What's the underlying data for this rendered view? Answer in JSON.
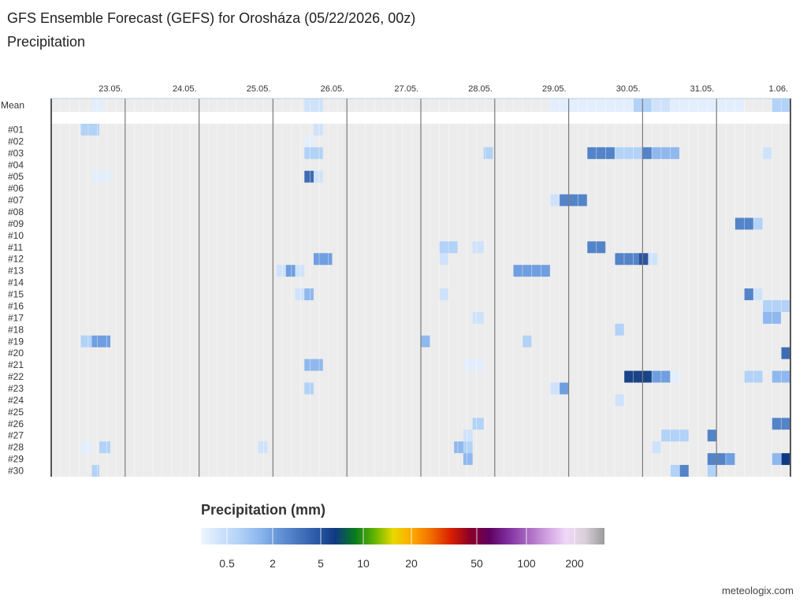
{
  "title": "GFS Ensemble Forecast (GEFS) for Orosháza (05/22/2026, 00z)",
  "subtitle": "Precipitation",
  "credit": "meteologix.com",
  "chart_data": {
    "type": "heatmap",
    "x_unit": "6-hourly steps from 22.05. 00z",
    "date_labels": [
      {
        "label": "23.05.",
        "step": 4
      },
      {
        "label": "24.05.",
        "step": 8
      },
      {
        "label": "25.05.",
        "step": 12
      },
      {
        "label": "26.05.",
        "step": 16
      },
      {
        "label": "27.05.",
        "step": 20
      },
      {
        "label": "28.05.",
        "step": 24
      },
      {
        "label": "29.05.",
        "step": 28
      },
      {
        "label": "30.05.",
        "step": 32
      },
      {
        "label": "31.05.",
        "step": 36
      },
      {
        "label": "1.06.",
        "step": 40
      }
    ],
    "rows": [
      "Mean",
      "#01",
      "#02",
      "#03",
      "#04",
      "#05",
      "#06",
      "#07",
      "#08",
      "#09",
      "#10",
      "#11",
      "#12",
      "#13",
      "#14",
      "#15",
      "#16",
      "#17",
      "#18",
      "#19",
      "#20",
      "#21",
      "#22",
      "#23",
      "#24",
      "#25",
      "#26",
      "#27",
      "#28",
      "#29",
      "#30"
    ],
    "cells": [
      {
        "row": "Mean",
        "from": 2.2,
        "to": 2.8,
        "value": 0.2
      },
      {
        "row": "Mean",
        "from": 13.7,
        "to": 14.7,
        "value": 0.3
      },
      {
        "row": "Mean",
        "from": 27,
        "to": 31.5,
        "value": 0.2
      },
      {
        "row": "Mean",
        "from": 31.5,
        "to": 32.5,
        "value": 0.6
      },
      {
        "row": "Mean",
        "from": 32.5,
        "to": 33.5,
        "value": 0.3
      },
      {
        "row": "Mean",
        "from": 33.5,
        "to": 37.5,
        "value": 0.15
      },
      {
        "row": "Mean",
        "from": 39,
        "to": 40,
        "value": 0.6
      },
      {
        "row": "#01",
        "from": 1.6,
        "to": 2.2,
        "value": 0.5
      },
      {
        "row": "#01",
        "from": 2.2,
        "to": 2.6,
        "value": 0.8
      },
      {
        "row": "#01",
        "from": 14.2,
        "to": 14.7,
        "value": 0.4
      },
      {
        "row": "#02",
        "from": 13.7,
        "to": 14.2,
        "value": 0.2
      },
      {
        "row": "#03",
        "from": 13.7,
        "to": 14.7,
        "value": 0.5
      },
      {
        "row": "#03",
        "from": 23.4,
        "to": 23.9,
        "value": 0.8
      },
      {
        "row": "#03",
        "from": 29,
        "to": 30.5,
        "value": 2.5
      },
      {
        "row": "#03",
        "from": 30.5,
        "to": 32,
        "value": 0.5
      },
      {
        "row": "#03",
        "from": 32,
        "to": 32.5,
        "value": 2.0
      },
      {
        "row": "#03",
        "from": 32.5,
        "to": 34,
        "value": 1.0
      },
      {
        "row": "#03",
        "from": 38.5,
        "to": 39,
        "value": 0.3
      },
      {
        "row": "#05",
        "from": 2.2,
        "to": 3.2,
        "value": 0.2
      },
      {
        "row": "#05",
        "from": 13.7,
        "to": 14.2,
        "value": 3.0
      },
      {
        "row": "#05",
        "from": 14.2,
        "to": 14.7,
        "value": 0.4
      },
      {
        "row": "#07",
        "from": 27,
        "to": 27.5,
        "value": 0.4
      },
      {
        "row": "#07",
        "from": 27.5,
        "to": 29,
        "value": 2.0
      },
      {
        "row": "#09",
        "from": 37,
        "to": 38,
        "value": 2.5
      },
      {
        "row": "#09",
        "from": 38,
        "to": 38.5,
        "value": 0.8
      },
      {
        "row": "#11",
        "from": 21,
        "to": 22,
        "value": 0.5
      },
      {
        "row": "#11",
        "from": 22.8,
        "to": 23.4,
        "value": 0.4
      },
      {
        "row": "#11",
        "from": 29,
        "to": 30,
        "value": 2.5
      },
      {
        "row": "#12",
        "from": 14.2,
        "to": 15.2,
        "value": 1.5
      },
      {
        "row": "#12",
        "from": 21,
        "to": 21.5,
        "value": 0.3
      },
      {
        "row": "#12",
        "from": 30.5,
        "to": 31.8,
        "value": 2.0
      },
      {
        "row": "#12",
        "from": 31.8,
        "to": 32.3,
        "value": 4.5
      },
      {
        "row": "#12",
        "from": 32.3,
        "to": 32.8,
        "value": 0.4
      },
      {
        "row": "#13",
        "from": 12.2,
        "to": 12.7,
        "value": 0.3
      },
      {
        "row": "#13",
        "from": 12.7,
        "to": 13.2,
        "value": 1.5
      },
      {
        "row": "#13",
        "from": 13.2,
        "to": 13.7,
        "value": 0.3
      },
      {
        "row": "#13",
        "from": 25,
        "to": 27,
        "value": 1.8
      },
      {
        "row": "#15",
        "from": 13.2,
        "to": 13.7,
        "value": 0.3
      },
      {
        "row": "#15",
        "from": 13.7,
        "to": 14.2,
        "value": 1.2
      },
      {
        "row": "#15",
        "from": 21,
        "to": 21.5,
        "value": 0.3
      },
      {
        "row": "#15",
        "from": 37.5,
        "to": 38,
        "value": 2.0
      },
      {
        "row": "#15",
        "from": 38,
        "to": 38.5,
        "value": 0.4
      },
      {
        "row": "#16",
        "from": 38.5,
        "to": 40,
        "value": 0.6
      },
      {
        "row": "#17",
        "from": 22.8,
        "to": 23.4,
        "value": 0.4
      },
      {
        "row": "#17",
        "from": 38.5,
        "to": 39.5,
        "value": 1.0
      },
      {
        "row": "#18",
        "from": 30.5,
        "to": 31,
        "value": 0.6
      },
      {
        "row": "#19",
        "from": 1.6,
        "to": 2.2,
        "value": 0.5
      },
      {
        "row": "#19",
        "from": 2.2,
        "to": 3.2,
        "value": 1.5
      },
      {
        "row": "#19",
        "from": 20,
        "to": 20.5,
        "value": 1.2
      },
      {
        "row": "#19",
        "from": 25.5,
        "to": 26,
        "value": 0.7
      },
      {
        "row": "#20",
        "from": 39.5,
        "to": 40,
        "value": 3.0
      },
      {
        "row": "#21",
        "from": 13.7,
        "to": 14.7,
        "value": 1.0
      },
      {
        "row": "#21",
        "from": 22.3,
        "to": 23.4,
        "value": 0.15
      },
      {
        "row": "#22",
        "from": 31,
        "to": 32.5,
        "value": 5.5
      },
      {
        "row": "#22",
        "from": 32.5,
        "to": 33.5,
        "value": 1.5
      },
      {
        "row": "#22",
        "from": 33.5,
        "to": 34,
        "value": 0.2
      },
      {
        "row": "#22",
        "from": 37.5,
        "to": 38.5,
        "value": 0.7
      },
      {
        "row": "#22",
        "from": 39,
        "to": 40,
        "value": 1.0
      },
      {
        "row": "#23",
        "from": 13.7,
        "to": 14.2,
        "value": 0.8
      },
      {
        "row": "#23",
        "from": 27,
        "to": 27.5,
        "value": 0.4
      },
      {
        "row": "#23",
        "from": 27.5,
        "to": 28,
        "value": 1.8
      },
      {
        "row": "#24",
        "from": 30.5,
        "to": 31,
        "value": 0.3
      },
      {
        "row": "#26",
        "from": 22.8,
        "to": 23.4,
        "value": 0.8
      },
      {
        "row": "#26",
        "from": 39,
        "to": 40,
        "value": 2.5
      },
      {
        "row": "#27",
        "from": 22.3,
        "to": 22.8,
        "value": 0.4
      },
      {
        "row": "#27",
        "from": 33,
        "to": 34.5,
        "value": 0.6
      },
      {
        "row": "#27",
        "from": 35.5,
        "to": 36,
        "value": 2.5
      },
      {
        "row": "#28",
        "from": 1.6,
        "to": 2.2,
        "value": 0.2
      },
      {
        "row": "#28",
        "from": 2.6,
        "to": 3.2,
        "value": 0.5
      },
      {
        "row": "#28",
        "from": 11.2,
        "to": 11.7,
        "value": 0.4
      },
      {
        "row": "#28",
        "from": 21.8,
        "to": 22.3,
        "value": 1.0
      },
      {
        "row": "#28",
        "from": 22.3,
        "to": 22.8,
        "value": 0.5
      },
      {
        "row": "#28",
        "from": 32.5,
        "to": 33,
        "value": 0.3
      },
      {
        "row": "#29",
        "from": 22.3,
        "to": 22.8,
        "value": 1.2
      },
      {
        "row": "#29",
        "from": 35.5,
        "to": 36.5,
        "value": 2.5
      },
      {
        "row": "#29",
        "from": 36.5,
        "to": 37,
        "value": 1.5
      },
      {
        "row": "#29",
        "from": 39,
        "to": 39.5,
        "value": 1.0
      },
      {
        "row": "#29",
        "from": 39.5,
        "to": 40,
        "value": 9.0
      },
      {
        "row": "#30",
        "from": 2.2,
        "to": 2.6,
        "value": 0.5
      },
      {
        "row": "#30",
        "from": 33.5,
        "to": 34,
        "value": 0.5
      },
      {
        "row": "#30",
        "from": 34,
        "to": 34.5,
        "value": 2.5
      },
      {
        "row": "#30",
        "from": 35.5,
        "to": 36,
        "value": 0.6
      }
    ],
    "legend": {
      "title": "Precipitation (mm)",
      "tick_labels": [
        "0.5",
        "2",
        "5",
        "10",
        "20",
        "50",
        "100",
        "200"
      ],
      "tick_values": [
        0.5,
        2,
        5,
        10,
        20,
        50,
        100,
        200
      ],
      "color_stops": [
        "#eef5ff",
        "#cfe2fb",
        "#b2d2f7",
        "#8fb8ee",
        "#6796d8",
        "#4a78c0",
        "#2c5aa6",
        "#0f3a82",
        "#087a20",
        "#5fb300",
        "#e8d800",
        "#ffa800",
        "#f06c00",
        "#d82000",
        "#8c0028",
        "#600060",
        "#8030a0",
        "#a868c0",
        "#d0a0e0",
        "#f0d8f8",
        "#d8d0d8",
        "#9a9a9a"
      ]
    }
  }
}
